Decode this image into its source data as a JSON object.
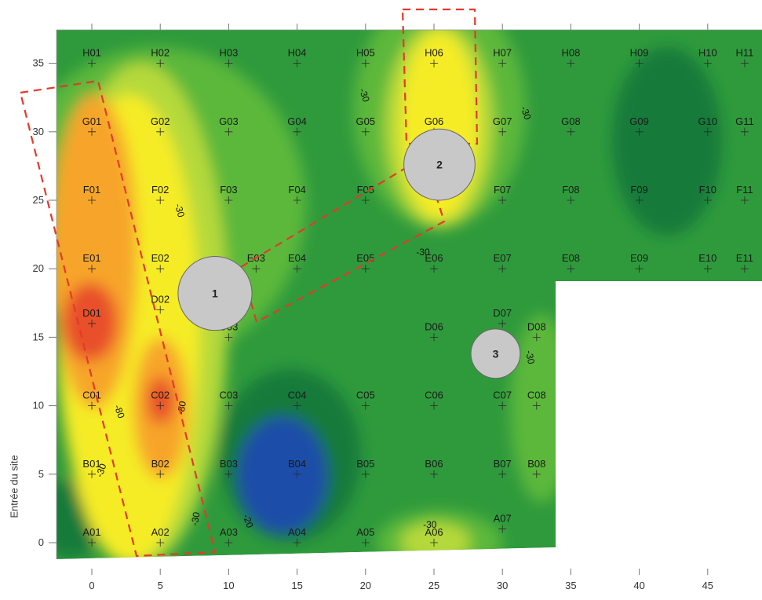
{
  "y_axis_label": "Entrée du site",
  "x_ticks": [
    "0",
    "5",
    "10",
    "15",
    "20",
    "25",
    "30",
    "35",
    "40",
    "45"
  ],
  "y_ticks": [
    "0",
    "5",
    "10",
    "15",
    "20",
    "25",
    "30",
    "35"
  ],
  "colors": {
    "background_field": "#2f9a3c",
    "dark_green": "#137a3a",
    "light_green": "#5cb83a",
    "yellow_green": "#b5d93a",
    "yellow": "#f5ec28",
    "orange": "#f7a52c",
    "red": "#e8502a",
    "blue": "#1f4ea8",
    "zone_fill": "#c8c8c8",
    "dashed_outline": "#e23a2a"
  },
  "grid_points": [
    {
      "label": "H01",
      "x": 0,
      "y": 35
    },
    {
      "label": "H02",
      "x": 5,
      "y": 35
    },
    {
      "label": "H03",
      "x": 10,
      "y": 35
    },
    {
      "label": "H04",
      "x": 15,
      "y": 35
    },
    {
      "label": "H05",
      "x": 20,
      "y": 35
    },
    {
      "label": "H06",
      "x": 25,
      "y": 35
    },
    {
      "label": "H07",
      "x": 30,
      "y": 35
    },
    {
      "label": "H08",
      "x": 35,
      "y": 35
    },
    {
      "label": "H09",
      "x": 40,
      "y": 35
    },
    {
      "label": "H10",
      "x": 45,
      "y": 35
    },
    {
      "label": "H11",
      "x": 47.7,
      "y": 35
    },
    {
      "label": "G01",
      "x": 0,
      "y": 30
    },
    {
      "label": "G02",
      "x": 5,
      "y": 30
    },
    {
      "label": "G03",
      "x": 10,
      "y": 30
    },
    {
      "label": "G04",
      "x": 15,
      "y": 30
    },
    {
      "label": "G05",
      "x": 20,
      "y": 30
    },
    {
      "label": "G06",
      "x": 25,
      "y": 30
    },
    {
      "label": "G07",
      "x": 30,
      "y": 30
    },
    {
      "label": "G08",
      "x": 35,
      "y": 30
    },
    {
      "label": "G09",
      "x": 40,
      "y": 30
    },
    {
      "label": "G10",
      "x": 45,
      "y": 30
    },
    {
      "label": "G11",
      "x": 47.7,
      "y": 30
    },
    {
      "label": "F01",
      "x": 0,
      "y": 25
    },
    {
      "label": "F02",
      "x": 5,
      "y": 25
    },
    {
      "label": "F03",
      "x": 10,
      "y": 25
    },
    {
      "label": "F04",
      "x": 15,
      "y": 25
    },
    {
      "label": "F05",
      "x": 20,
      "y": 25
    },
    {
      "label": "F07",
      "x": 30,
      "y": 25
    },
    {
      "label": "F08",
      "x": 35,
      "y": 25
    },
    {
      "label": "F09",
      "x": 40,
      "y": 25
    },
    {
      "label": "F10",
      "x": 45,
      "y": 25
    },
    {
      "label": "F11",
      "x": 47.7,
      "y": 25
    },
    {
      "label": "E01",
      "x": 0,
      "y": 20
    },
    {
      "label": "E02",
      "x": 5,
      "y": 20
    },
    {
      "label": "E03",
      "x": 12,
      "y": 20
    },
    {
      "label": "E04",
      "x": 15,
      "y": 20
    },
    {
      "label": "E05",
      "x": 20,
      "y": 20
    },
    {
      "label": "E06",
      "x": 25,
      "y": 20
    },
    {
      "label": "E07",
      "x": 30,
      "y": 20
    },
    {
      "label": "E08",
      "x": 35,
      "y": 20
    },
    {
      "label": "E09",
      "x": 40,
      "y": 20
    },
    {
      "label": "E10",
      "x": 45,
      "y": 20
    },
    {
      "label": "E11",
      "x": 47.7,
      "y": 20
    },
    {
      "label": "D01",
      "x": 0,
      "y": 16
    },
    {
      "label": "D02",
      "x": 5,
      "y": 17
    },
    {
      "label": "D03",
      "x": 10,
      "y": 15
    },
    {
      "label": "D06",
      "x": 25,
      "y": 15
    },
    {
      "label": "D07",
      "x": 30,
      "y": 16
    },
    {
      "label": "D08",
      "x": 32.5,
      "y": 15
    },
    {
      "label": "C01",
      "x": 0,
      "y": 10
    },
    {
      "label": "C02",
      "x": 5,
      "y": 10
    },
    {
      "label": "C03",
      "x": 10,
      "y": 10
    },
    {
      "label": "C04",
      "x": 15,
      "y": 10
    },
    {
      "label": "C05",
      "x": 20,
      "y": 10
    },
    {
      "label": "C06",
      "x": 25,
      "y": 10
    },
    {
      "label": "C07",
      "x": 30,
      "y": 10
    },
    {
      "label": "C08",
      "x": 32.5,
      "y": 10
    },
    {
      "label": "B01",
      "x": 0,
      "y": 5
    },
    {
      "label": "B02",
      "x": 5,
      "y": 5
    },
    {
      "label": "B03",
      "x": 10,
      "y": 5
    },
    {
      "label": "B04",
      "x": 15,
      "y": 5
    },
    {
      "label": "B05",
      "x": 20,
      "y": 5
    },
    {
      "label": "B06",
      "x": 25,
      "y": 5
    },
    {
      "label": "B07",
      "x": 30,
      "y": 5
    },
    {
      "label": "B08",
      "x": 32.5,
      "y": 5
    },
    {
      "label": "A01",
      "x": 0,
      "y": 0
    },
    {
      "label": "A02",
      "x": 5,
      "y": 0
    },
    {
      "label": "A03",
      "x": 10,
      "y": 0
    },
    {
      "label": "A04",
      "x": 15,
      "y": 0
    },
    {
      "label": "A05",
      "x": 20,
      "y": 0
    },
    {
      "label": "A06",
      "x": 25,
      "y": 0
    },
    {
      "label": "A07",
      "x": 30,
      "y": 1
    }
  ],
  "zones": [
    {
      "label": "1",
      "x": 9,
      "y": 18.2,
      "r": 2.7
    },
    {
      "label": "2",
      "x": 25.4,
      "y": 27.6,
      "r": 2.6
    },
    {
      "label": "3",
      "x": 29.5,
      "y": 13.8,
      "r": 1.8
    }
  ],
  "contour_labels": [
    {
      "text": "-30",
      "x": 19.7,
      "y": 32.6,
      "rot": 70
    },
    {
      "text": "-30",
      "x": 31.5,
      "y": 31.3,
      "rot": 70
    },
    {
      "text": "-30",
      "x": 6.2,
      "y": 24.2,
      "rot": 75
    },
    {
      "text": "-30",
      "x": 24.2,
      "y": 21.0,
      "rot": 0
    },
    {
      "text": "-30",
      "x": 31.8,
      "y": 13.5,
      "rot": 80
    },
    {
      "text": "-80",
      "x": 1.8,
      "y": 9.5,
      "rot": 70
    },
    {
      "text": "-80",
      "x": 6.8,
      "y": 9.8,
      "rot": -80
    },
    {
      "text": "-30",
      "x": 0.9,
      "y": 5.2,
      "rot": -70
    },
    {
      "text": "-30",
      "x": 7.8,
      "y": 1.7,
      "rot": -80
    },
    {
      "text": "-20",
      "x": 11.2,
      "y": 1.5,
      "rot": 70
    },
    {
      "text": "-30",
      "x": 24.7,
      "y": 1.1,
      "rot": 0
    }
  ]
}
